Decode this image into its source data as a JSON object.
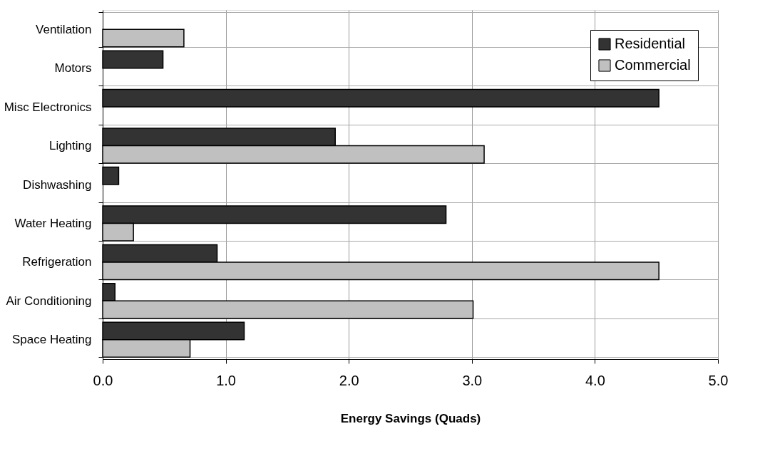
{
  "chart_data": {
    "type": "bar",
    "orientation": "horizontal",
    "xlabel": "Energy Savings (Quads)",
    "categories": [
      "Ventilation",
      "Motors",
      "Misc Electronics",
      "Lighting",
      "Dishwashing",
      "Water Heating",
      "Refrigeration",
      "Air Conditioning",
      "Space Heating"
    ],
    "series": [
      {
        "name": "Residential",
        "color": "#333333",
        "values": [
          null,
          0.49,
          4.52,
          1.89,
          0.13,
          2.79,
          0.93,
          0.1,
          1.15
        ]
      },
      {
        "name": "Commercial",
        "color": "#c0c0c0",
        "values": [
          0.66,
          null,
          null,
          3.1,
          null,
          0.25,
          4.52,
          3.01,
          0.71
        ]
      }
    ],
    "xlim": [
      0,
      5
    ],
    "xticks": [
      {
        "value": 0,
        "label": "0.0"
      },
      {
        "value": 1,
        "label": "1.0"
      },
      {
        "value": 2,
        "label": "2.0"
      },
      {
        "value": 3,
        "label": "3.0"
      },
      {
        "value": 4,
        "label": "4.0"
      },
      {
        "value": 5,
        "label": "5.0"
      }
    ],
    "grid": true,
    "legend": "top right"
  }
}
